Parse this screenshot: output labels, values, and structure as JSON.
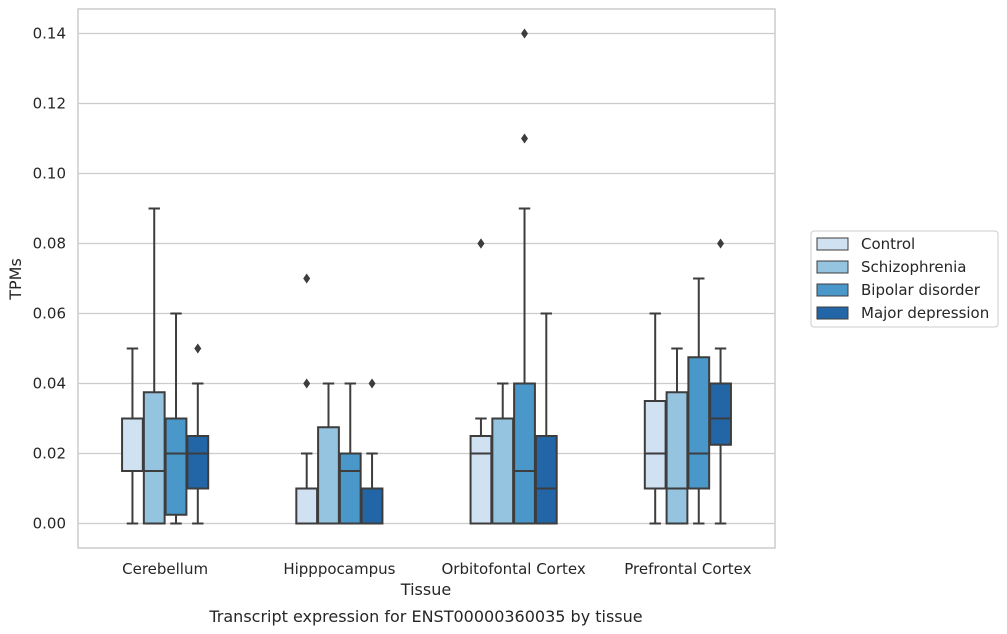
{
  "caption": "Transcript expression for ENST00000360035 by tissue",
  "chart_data": {
    "type": "boxplot",
    "title": "",
    "xlabel": "Tissue",
    "ylabel": "TPMs",
    "ylim": [
      -0.007,
      0.147
    ],
    "yticks": [
      0.0,
      0.02,
      0.04,
      0.06,
      0.08,
      0.1,
      0.12,
      0.14
    ],
    "ytick_labels": [
      "0.00",
      "0.02",
      "0.04",
      "0.06",
      "0.08",
      "0.10",
      "0.12",
      "0.14"
    ],
    "grid": "horizontal",
    "legend_position": "right",
    "categories": [
      "Cerebellum",
      "Hipppocampus",
      "Orbitofontal Cortex",
      "Prefrontal Cortex"
    ],
    "series": [
      {
        "name": "Control",
        "color": "#d0e1f2",
        "boxes": [
          {
            "whislo": 0.0,
            "q1": 0.015,
            "med": 0.015,
            "q3": 0.03,
            "whishi": 0.05,
            "fliers": []
          },
          {
            "whislo": 0.0,
            "q1": 0.0,
            "med": 0.0,
            "q3": 0.01,
            "whishi": 0.02,
            "fliers": [
              0.04,
              0.07
            ]
          },
          {
            "whislo": 0.0,
            "q1": 0.0,
            "med": 0.02,
            "q3": 0.025,
            "whishi": 0.03,
            "fliers": [
              0.08,
              0.08
            ]
          },
          {
            "whislo": 0.0,
            "q1": 0.01,
            "med": 0.02,
            "q3": 0.035,
            "whishi": 0.06,
            "fliers": []
          }
        ]
      },
      {
        "name": "Schizophrenia",
        "color": "#94c4df",
        "boxes": [
          {
            "whislo": 0.0,
            "q1": 0.0,
            "med": 0.015,
            "q3": 0.0375,
            "whishi": 0.09,
            "fliers": []
          },
          {
            "whislo": 0.0,
            "q1": 0.0,
            "med": 0.0,
            "q3": 0.0275,
            "whishi": 0.04,
            "fliers": []
          },
          {
            "whislo": 0.0,
            "q1": 0.0,
            "med": 0.0,
            "q3": 0.03,
            "whishi": 0.04,
            "fliers": []
          },
          {
            "whislo": 0.0,
            "q1": 0.0,
            "med": 0.01,
            "q3": 0.0375,
            "whishi": 0.05,
            "fliers": []
          }
        ]
      },
      {
        "name": "Bipolar disorder",
        "color": "#4a98c9",
        "boxes": [
          {
            "whislo": 0.0,
            "q1": 0.0025,
            "med": 0.02,
            "q3": 0.03,
            "whishi": 0.06,
            "fliers": []
          },
          {
            "whislo": 0.0,
            "q1": 0.0,
            "med": 0.015,
            "q3": 0.02,
            "whishi": 0.04,
            "fliers": []
          },
          {
            "whislo": 0.0,
            "q1": 0.0,
            "med": 0.015,
            "q3": 0.04,
            "whishi": 0.09,
            "fliers": [
              0.11,
              0.14
            ]
          },
          {
            "whislo": 0.0,
            "q1": 0.01,
            "med": 0.02,
            "q3": 0.0475,
            "whishi": 0.07,
            "fliers": []
          }
        ]
      },
      {
        "name": "Major depression",
        "color": "#2366a8",
        "boxes": [
          {
            "whislo": 0.0,
            "q1": 0.01,
            "med": 0.02,
            "q3": 0.025,
            "whishi": 0.04,
            "fliers": [
              0.05
            ]
          },
          {
            "whislo": 0.0,
            "q1": 0.0,
            "med": 0.0,
            "q3": 0.01,
            "whishi": 0.02,
            "fliers": [
              0.04
            ]
          },
          {
            "whislo": 0.0,
            "q1": 0.0,
            "med": 0.01,
            "q3": 0.025,
            "whishi": 0.06,
            "fliers": []
          },
          {
            "whislo": 0.0,
            "q1": 0.0225,
            "med": 0.03,
            "q3": 0.04,
            "whishi": 0.05,
            "fliers": [
              0.08
            ]
          }
        ]
      }
    ]
  }
}
